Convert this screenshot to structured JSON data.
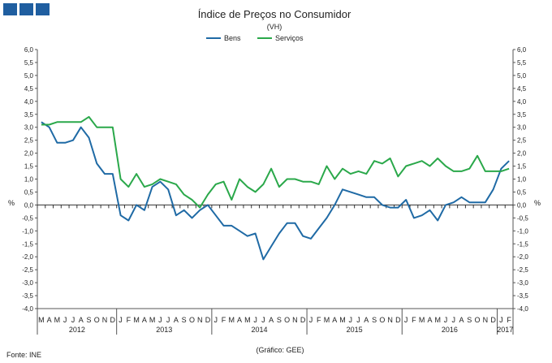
{
  "chart_data": {
    "type": "line",
    "title": "Índice de Preços no Consumidor",
    "subtitle": "(VH)",
    "ylabel_left": "%",
    "ylabel_right": "%",
    "ylim": [
      -4.0,
      6.0
    ],
    "y_ticks": [
      "6,0",
      "5,5",
      "5,0",
      "4,5",
      "4,0",
      "3,5",
      "3,0",
      "2,5",
      "2,0",
      "1,5",
      "1,0",
      "0,5",
      "0,0",
      "-0,5",
      "-1,0",
      "-1,5",
      "-2,0",
      "-2,5",
      "-3,0",
      "-3,5",
      "-4,0"
    ],
    "month_labels": [
      "M",
      "A",
      "M",
      "J",
      "J",
      "A",
      "S",
      "O",
      "N",
      "D",
      "J",
      "F",
      "M",
      "A",
      "M",
      "J",
      "J",
      "A",
      "S",
      "O",
      "N",
      "D",
      "J",
      "F",
      "M",
      "A",
      "M",
      "J",
      "J",
      "A",
      "S",
      "O",
      "N",
      "D",
      "J",
      "F",
      "M",
      "A",
      "M",
      "J",
      "J",
      "A",
      "S",
      "O",
      "N",
      "D",
      "J",
      "F",
      "M",
      "A",
      "M",
      "J",
      "J",
      "A",
      "S",
      "O",
      "N",
      "D",
      "J",
      "F"
    ],
    "year_labels": [
      "2012",
      "2013",
      "2014",
      "2015",
      "2016",
      "2017"
    ],
    "year_start_index": [
      0,
      10,
      22,
      34,
      46,
      58
    ],
    "x_start": "2012-03",
    "x_end": "2017-02",
    "legend_position": "top",
    "series": [
      {
        "name": "Bens",
        "color": "#1f6aa5",
        "values": [
          3.2,
          3.0,
          2.4,
          2.4,
          2.5,
          3.0,
          2.6,
          1.6,
          1.2,
          1.2,
          -0.4,
          -0.6,
          0.0,
          -0.2,
          0.7,
          0.9,
          0.6,
          -0.4,
          -0.2,
          -0.5,
          -0.2,
          0.0,
          -0.4,
          -0.8,
          -0.8,
          -1.0,
          -1.2,
          -1.1,
          -2.1,
          -1.6,
          -1.1,
          -0.7,
          -0.7,
          -1.2,
          -1.3,
          -0.9,
          -0.5,
          0.0,
          0.6,
          0.5,
          0.4,
          0.3,
          0.3,
          0.0,
          -0.1,
          -0.1,
          0.2,
          -0.5,
          -0.4,
          -0.2,
          -0.6,
          0.0,
          0.1,
          0.3,
          0.1,
          0.1,
          0.1,
          0.6,
          1.4,
          1.7
        ]
      },
      {
        "name": "Serviços",
        "color": "#2aa84a",
        "values": [
          3.1,
          3.1,
          3.2,
          3.2,
          3.2,
          3.2,
          3.4,
          3.0,
          3.0,
          3.0,
          1.0,
          0.7,
          1.2,
          0.7,
          0.8,
          1.0,
          0.9,
          0.8,
          0.4,
          0.2,
          -0.1,
          0.4,
          0.8,
          0.9,
          0.2,
          1.0,
          0.7,
          0.5,
          0.8,
          1.4,
          0.7,
          1.0,
          1.0,
          0.9,
          0.9,
          0.8,
          1.5,
          1.0,
          1.4,
          1.2,
          1.3,
          1.2,
          1.7,
          1.6,
          1.8,
          1.1,
          1.5,
          1.6,
          1.7,
          1.5,
          1.8,
          1.5,
          1.3,
          1.3,
          1.4,
          1.9,
          1.3,
          1.3,
          1.3,
          1.4
        ]
      }
    ]
  },
  "footer": {
    "source": "Fonte: INE",
    "credit": "(Gráfico: GEE)"
  }
}
